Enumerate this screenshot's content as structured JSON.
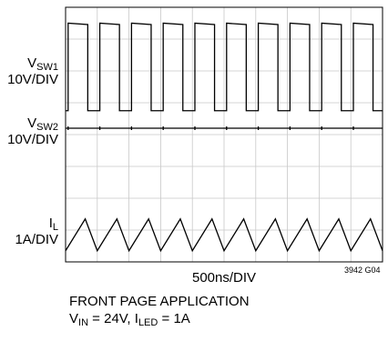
{
  "chart_data": {
    "type": "line",
    "divisions": {
      "x": 10,
      "y": 8
    },
    "grid": true,
    "channels": [
      {
        "main": "V",
        "sub": "SW1",
        "scale": "10V/DIV",
        "shape": "square",
        "period_div": 1.0,
        "high_div": 7.5,
        "low_div": 4.75,
        "duty_high": 0.62
      },
      {
        "main": "V",
        "sub": "SW2",
        "scale": "10V/DIV",
        "shape": "flat",
        "period_div": 1.0,
        "level_div": 4.2
      },
      {
        "main": "I",
        "sub": "L",
        "scale": "1A/DIV",
        "shape": "triangle",
        "period_div": 1.0,
        "min_div": 0.35,
        "max_div": 1.35
      }
    ],
    "time_scale": "500ns/DIV",
    "figure_code": "3942 G04"
  },
  "caption": {
    "line1": "FRONT PAGE APPLICATION",
    "vin_main": "V",
    "vin_sub": "IN",
    "vin_val": " = 24V, ",
    "iled_main": "I",
    "iled_sub": "LED",
    "iled_val": " = 1A"
  }
}
